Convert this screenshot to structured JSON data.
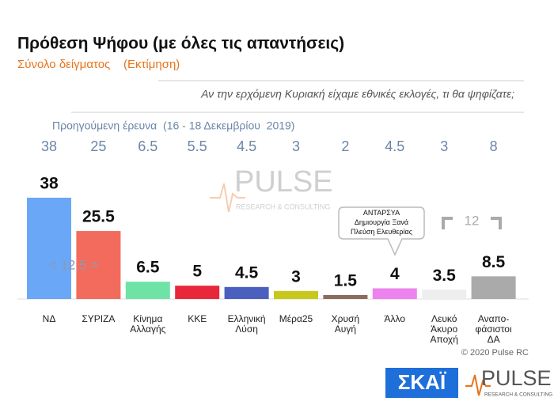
{
  "chart_data": {
    "type": "bar",
    "title": "Πρόθεση Ψήφου (με όλες τις απαντήσεις)",
    "subtitle": "Σύνολο δείγματος    (Εκτίμηση)",
    "question": "Αν την ερχόμενη Κυριακή είχαμε εθνικές εκλογές, τι θα ψηφίζατε;",
    "categories": [
      "ΝΔ",
      "ΣΥΡΙΖΑ",
      "Κίνημα\nΑλλαγής",
      "ΚΚΕ",
      "Ελληνική\nΛύση",
      "Μέρα25",
      "Χρυσή\nΑυγή",
      "Άλλο",
      "Λευκό\nΆκυρο\nΑποχή",
      "Αναπο-\nφάσιστοι\nΔΑ"
    ],
    "values": [
      38,
      25.5,
      6.5,
      5,
      4.5,
      3,
      1.5,
      4,
      3.5,
      8.5
    ],
    "colors": [
      "#6aa7f7",
      "#f36b5c",
      "#6fe3a6",
      "#e8283a",
      "#4a5fbe",
      "#c8c81a",
      "#8b6b5e",
      "#ee82ee",
      "#eeeeee",
      "#aaaaaa"
    ],
    "previous": {
      "label": "Προηγούμενη έρευνα  (16 - 18 Δεκεμβρίου  2019)",
      "values": [
        38,
        25,
        6.5,
        5.5,
        4.5,
        3,
        2,
        4.5,
        3,
        8
      ]
    },
    "annotations": {
      "gap": "< 12.5 >",
      "bracket": "12",
      "callout": "ΑΝΤΑΡΣΥΑ\nΔημιουργία Ξανά\nΠλεύση Ελευθερίας"
    },
    "copyright": "© 2020 Pulse RC",
    "watermark": {
      "name": "PULSE",
      "tagline": "RESEARCH & CONSULTING"
    },
    "logos": {
      "skai": "ΣΚΑΪ",
      "pulse": "PULSE",
      "pulse_tagline": "RESEARCH & CONSULTING"
    }
  }
}
